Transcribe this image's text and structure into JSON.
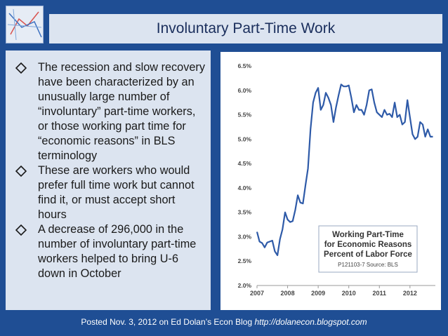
{
  "slide": {
    "title": "Involuntary Part-Time Work",
    "bullets": [
      "The recession and slow recovery have been characterized by an unusually large number of “involuntary” part-time workers, or those working part time for “economic reasons” in BLS terminology",
      "These are workers who would prefer full time work but cannot find it, or must accept short hours",
      "A decrease of 296,000 in the number of involuntary part-time workers helped to bring U-6 down in October"
    ],
    "footer_text": "Posted Nov. 3, 2012 on Ed Dolan’s Econ Blog",
    "footer_url": "http://dolanecon.blogspot.com"
  },
  "chart_data": {
    "type": "line",
    "annotation_lines": [
      "Working Part-Time",
      "for Economic Reasons",
      "Percent of Labor Force"
    ],
    "source_note": "P121103-7 Source: BLS",
    "x_ticks": [
      "2007",
      "2008",
      "2009",
      "2010",
      "2011",
      "2012"
    ],
    "y_ticks": [
      "6.5%",
      "6.0%",
      "5.5%",
      "5.0%",
      "4.5%",
      "4.0%",
      "3.5%",
      "3.0%",
      "2.5%",
      "2.0%"
    ],
    "ylim": [
      2.0,
      6.5
    ],
    "xlim": [
      2007.0,
      2012.83
    ],
    "grid": false,
    "line_color": "#2e5aa8",
    "series": [
      {
        "x": [
          2007.0,
          2007.083,
          2007.167,
          2007.25,
          2007.333,
          2007.417,
          2007.5,
          2007.583,
          2007.667,
          2007.75,
          2007.833,
          2007.917,
          2008.0,
          2008.083,
          2008.167,
          2008.25,
          2008.333,
          2008.417,
          2008.5,
          2008.583,
          2008.667,
          2008.75,
          2008.833,
          2008.917,
          2009.0,
          2009.083,
          2009.167,
          2009.25,
          2009.333,
          2009.417,
          2009.5,
          2009.583,
          2009.667,
          2009.75,
          2009.833,
          2009.917,
          2010.0,
          2010.083,
          2010.167,
          2010.25,
          2010.333,
          2010.417,
          2010.5,
          2010.583,
          2010.667,
          2010.75,
          2010.833,
          2010.917,
          2011.0,
          2011.083,
          2011.167,
          2011.25,
          2011.333,
          2011.417,
          2011.5,
          2011.583,
          2011.667,
          2011.75,
          2011.833,
          2011.917,
          2012.0,
          2012.083,
          2012.167,
          2012.25,
          2012.333,
          2012.417,
          2012.5,
          2012.583,
          2012.667,
          2012.75
        ],
        "values": [
          3.1,
          2.9,
          2.87,
          2.78,
          2.88,
          2.9,
          2.92,
          2.7,
          2.62,
          2.95,
          3.15,
          3.5,
          3.35,
          3.3,
          3.32,
          3.55,
          3.85,
          3.7,
          3.68,
          4.05,
          4.4,
          5.2,
          5.75,
          5.95,
          6.05,
          5.6,
          5.7,
          5.95,
          5.85,
          5.7,
          5.35,
          5.65,
          5.9,
          6.12,
          6.08,
          6.08,
          6.1,
          5.85,
          5.55,
          5.7,
          5.6,
          5.6,
          5.5,
          5.7,
          6.0,
          6.02,
          5.75,
          5.55,
          5.5,
          5.45,
          5.6,
          5.5,
          5.52,
          5.45,
          5.75,
          5.45,
          5.5,
          5.3,
          5.35,
          5.8,
          5.45,
          5.1,
          5.0,
          5.05,
          5.35,
          5.3,
          5.05,
          5.2,
          5.05,
          5.05
        ]
      }
    ]
  }
}
